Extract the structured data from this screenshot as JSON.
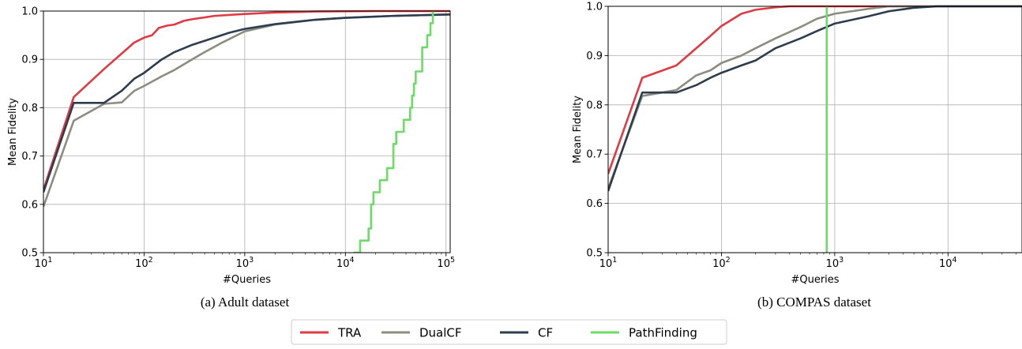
{
  "chart_data": [
    {
      "type": "line",
      "caption": "(a) Adult dataset",
      "xlabel": "#Queries",
      "ylabel": "Mean Fidelity",
      "xscale": "log",
      "xlim": [
        10,
        110000
      ],
      "ylim": [
        0.5,
        1.0
      ],
      "grid": true,
      "xticks": [
        {
          "value": 10,
          "base": "10",
          "exp": "1"
        },
        {
          "value": 100,
          "base": "10",
          "exp": "2"
        },
        {
          "value": 1000,
          "base": "10",
          "exp": "3"
        },
        {
          "value": 10000,
          "base": "10",
          "exp": "4"
        },
        {
          "value": 100000,
          "base": "10",
          "exp": "5"
        }
      ],
      "yticks": [
        {
          "value": 0.5,
          "label": "0.5"
        },
        {
          "value": 0.6,
          "label": "0.6"
        },
        {
          "value": 0.7,
          "label": "0.7"
        },
        {
          "value": 0.8,
          "label": "0.8"
        },
        {
          "value": 0.9,
          "label": "0.9"
        },
        {
          "value": 1.0,
          "label": "1.0"
        }
      ],
      "series": [
        {
          "name": "TRA",
          "color": "#e03a44",
          "step": false,
          "points": [
            [
              10,
              0.63
            ],
            [
              20,
              0.822
            ],
            [
              40,
              0.88
            ],
            [
              80,
              0.935
            ],
            [
              100,
              0.945
            ],
            [
              120,
              0.95
            ],
            [
              140,
              0.965
            ],
            [
              170,
              0.97
            ],
            [
              200,
              0.972
            ],
            [
              250,
              0.98
            ],
            [
              300,
              0.983
            ],
            [
              500,
              0.99
            ],
            [
              1000,
              0.994
            ],
            [
              2000,
              0.997
            ],
            [
              5000,
              0.999
            ],
            [
              20000,
              1.0
            ],
            [
              110000,
              1.0
            ]
          ]
        },
        {
          "name": "DualCF",
          "color": "#8c8c80",
          "step": false,
          "points": [
            [
              10,
              0.595
            ],
            [
              20,
              0.773
            ],
            [
              40,
              0.808
            ],
            [
              60,
              0.811
            ],
            [
              80,
              0.835
            ],
            [
              100,
              0.845
            ],
            [
              150,
              0.865
            ],
            [
              200,
              0.878
            ],
            [
              300,
              0.9
            ],
            [
              400,
              0.915
            ],
            [
              600,
              0.935
            ],
            [
              1000,
              0.958
            ],
            [
              2000,
              0.972
            ],
            [
              5000,
              0.982
            ],
            [
              10000,
              0.986
            ],
            [
              30000,
              0.99
            ],
            [
              110000,
              0.993
            ]
          ]
        },
        {
          "name": "CF",
          "color": "#2e3d4e",
          "step": false,
          "points": [
            [
              10,
              0.625
            ],
            [
              20,
              0.81
            ],
            [
              40,
              0.81
            ],
            [
              60,
              0.835
            ],
            [
              80,
              0.86
            ],
            [
              100,
              0.872
            ],
            [
              150,
              0.9
            ],
            [
              200,
              0.915
            ],
            [
              300,
              0.93
            ],
            [
              500,
              0.945
            ],
            [
              700,
              0.955
            ],
            [
              1000,
              0.963
            ],
            [
              2000,
              0.973
            ],
            [
              5000,
              0.982
            ],
            [
              10000,
              0.986
            ],
            [
              30000,
              0.99
            ],
            [
              110000,
              0.993
            ]
          ]
        },
        {
          "name": "PathFinding",
          "color": "#6ddc66",
          "step": true,
          "points": [
            [
              12000,
              0.5
            ],
            [
              14000,
              0.525
            ],
            [
              17000,
              0.55
            ],
            [
              18000,
              0.6
            ],
            [
              19000,
              0.625
            ],
            [
              22000,
              0.65
            ],
            [
              26000,
              0.675
            ],
            [
              30000,
              0.725
            ],
            [
              32000,
              0.75
            ],
            [
              38000,
              0.775
            ],
            [
              44000,
              0.8
            ],
            [
              46000,
              0.825
            ],
            [
              48000,
              0.85
            ],
            [
              50000,
              0.875
            ],
            [
              58000,
              0.925
            ],
            [
              65000,
              0.95
            ],
            [
              70000,
              0.975
            ],
            [
              74000,
              1.0
            ]
          ]
        }
      ]
    },
    {
      "type": "line",
      "caption": "(b) COMPAS dataset",
      "xlabel": "#Queries",
      "ylabel": "Mean Fidelity",
      "xscale": "log",
      "xlim": [
        10,
        45000
      ],
      "ylim": [
        0.5,
        1.0
      ],
      "grid": true,
      "xticks": [
        {
          "value": 10,
          "base": "10",
          "exp": "1"
        },
        {
          "value": 100,
          "base": "10",
          "exp": "2"
        },
        {
          "value": 1000,
          "base": "10",
          "exp": "3"
        },
        {
          "value": 10000,
          "base": "10",
          "exp": "4"
        }
      ],
      "yticks": [
        {
          "value": 0.5,
          "label": "0.5"
        },
        {
          "value": 0.6,
          "label": "0.6"
        },
        {
          "value": 0.7,
          "label": "0.7"
        },
        {
          "value": 0.8,
          "label": "0.8"
        },
        {
          "value": 0.9,
          "label": "0.9"
        },
        {
          "value": 1.0,
          "label": "1.0"
        }
      ],
      "series": [
        {
          "name": "TRA",
          "color": "#e03a44",
          "step": false,
          "points": [
            [
              10,
              0.66
            ],
            [
              20,
              0.855
            ],
            [
              40,
              0.88
            ],
            [
              60,
              0.915
            ],
            [
              80,
              0.94
            ],
            [
              100,
              0.96
            ],
            [
              150,
              0.985
            ],
            [
              200,
              0.993
            ],
            [
              300,
              0.998
            ],
            [
              400,
              1.0
            ],
            [
              45000,
              1.0
            ]
          ]
        },
        {
          "name": "DualCF",
          "color": "#8c8c80",
          "step": false,
          "points": [
            [
              10,
              0.63
            ],
            [
              20,
              0.818
            ],
            [
              40,
              0.83
            ],
            [
              60,
              0.86
            ],
            [
              80,
              0.87
            ],
            [
              100,
              0.885
            ],
            [
              150,
              0.9
            ],
            [
              200,
              0.915
            ],
            [
              300,
              0.935
            ],
            [
              500,
              0.958
            ],
            [
              700,
              0.975
            ],
            [
              1000,
              0.985
            ],
            [
              2000,
              0.995
            ],
            [
              3000,
              1.0
            ],
            [
              45000,
              1.0
            ]
          ]
        },
        {
          "name": "CF",
          "color": "#2e3d4e",
          "step": false,
          "points": [
            [
              10,
              0.625
            ],
            [
              20,
              0.825
            ],
            [
              40,
              0.825
            ],
            [
              60,
              0.84
            ],
            [
              80,
              0.855
            ],
            [
              100,
              0.865
            ],
            [
              150,
              0.88
            ],
            [
              200,
              0.89
            ],
            [
              300,
              0.915
            ],
            [
              500,
              0.935
            ],
            [
              700,
              0.95
            ],
            [
              1000,
              0.965
            ],
            [
              2000,
              0.98
            ],
            [
              3000,
              0.99
            ],
            [
              5000,
              0.997
            ],
            [
              8000,
              1.0
            ],
            [
              45000,
              1.0
            ]
          ]
        },
        {
          "name": "PathFinding",
          "color": "#6ddc66",
          "step": false,
          "vertical": 850,
          "points": [
            [
              850,
              0.5
            ],
            [
              850,
              1.0
            ]
          ]
        }
      ]
    }
  ],
  "legend": {
    "placement": "bottom-center",
    "entries": [
      {
        "label": "TRA",
        "color": "#e03a44"
      },
      {
        "label": "DualCF",
        "color": "#8c8c80"
      },
      {
        "label": "CF",
        "color": "#2e3d4e"
      },
      {
        "label": "PathFinding",
        "color": "#6ddc66"
      }
    ]
  }
}
